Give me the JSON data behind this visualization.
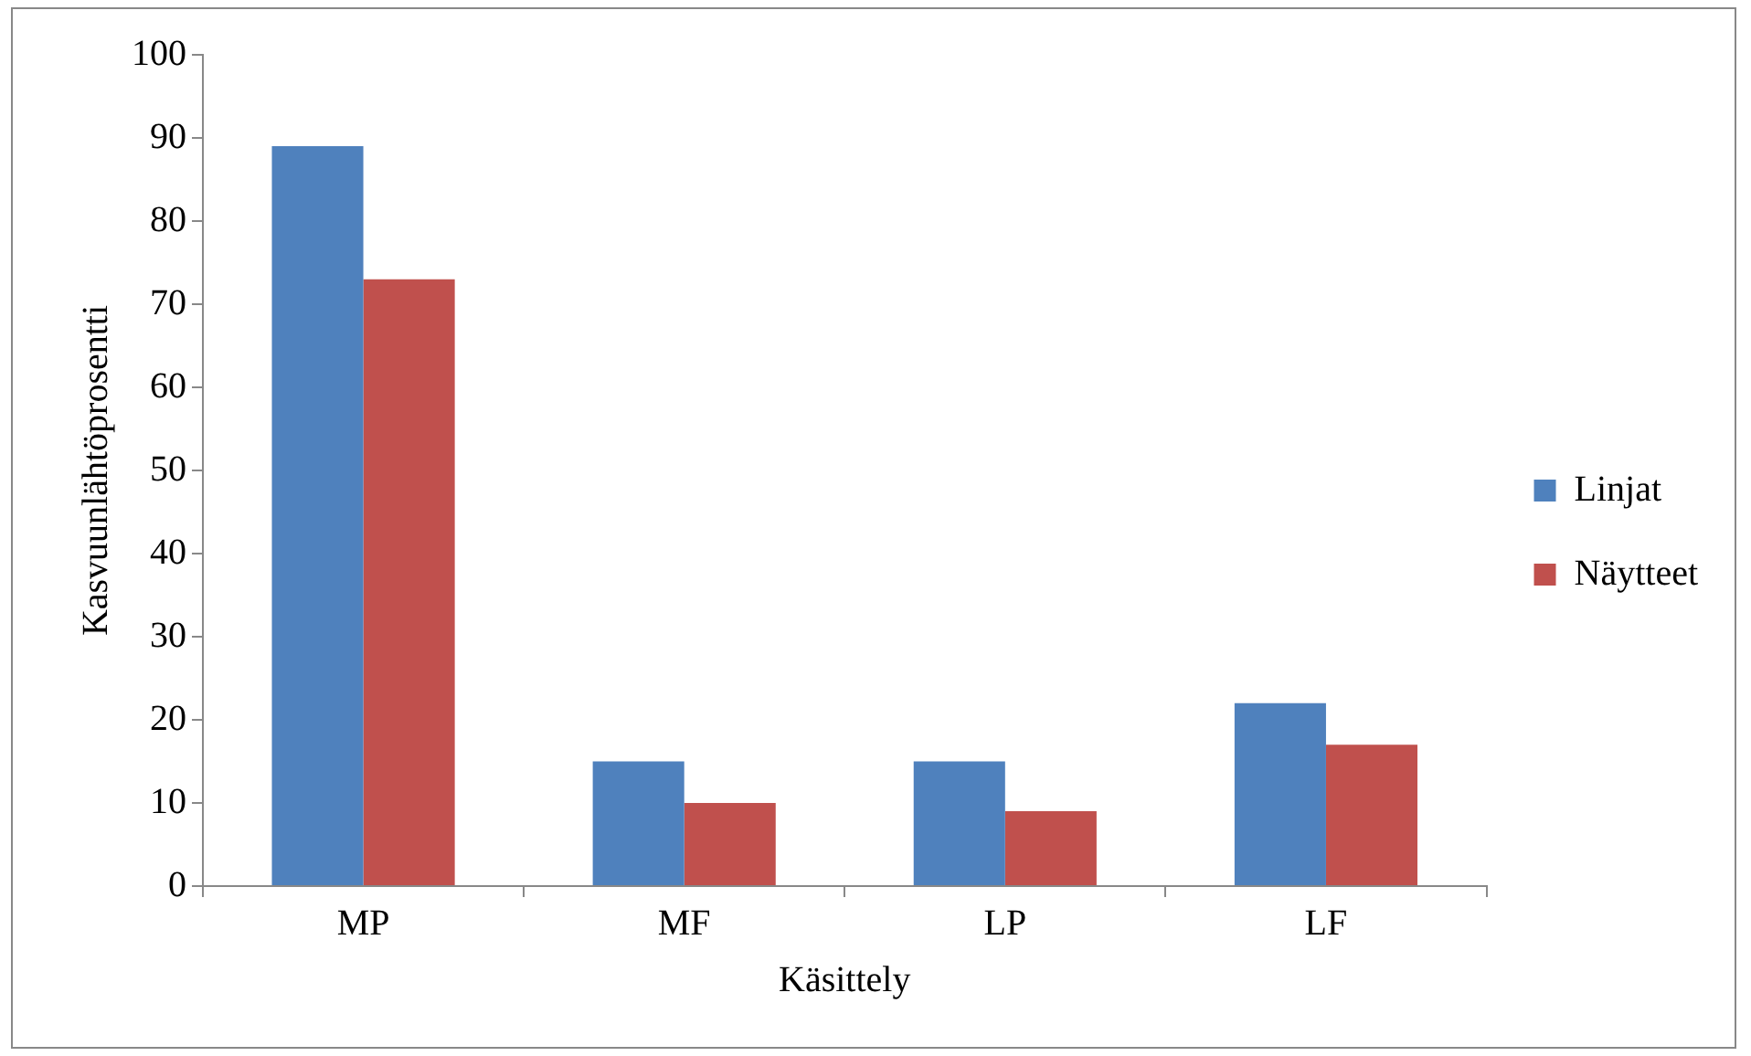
{
  "chart_data": {
    "type": "bar",
    "xlabel": "Käsittely",
    "ylabel": "Kasvuunlähtöprosentti",
    "categories": [
      "MP",
      "MF",
      "LP",
      "LF"
    ],
    "series": [
      {
        "name": "Linjat",
        "color": "#4f81bd",
        "values": [
          89,
          15,
          15,
          22
        ]
      },
      {
        "name": "Näytteet",
        "color": "#c0504d",
        "values": [
          73,
          10,
          9,
          17
        ]
      }
    ],
    "ylim": [
      0,
      100
    ],
    "yticks": [
      0,
      10,
      20,
      30,
      40,
      50,
      60,
      70,
      80,
      90,
      100
    ],
    "legend": "right"
  }
}
